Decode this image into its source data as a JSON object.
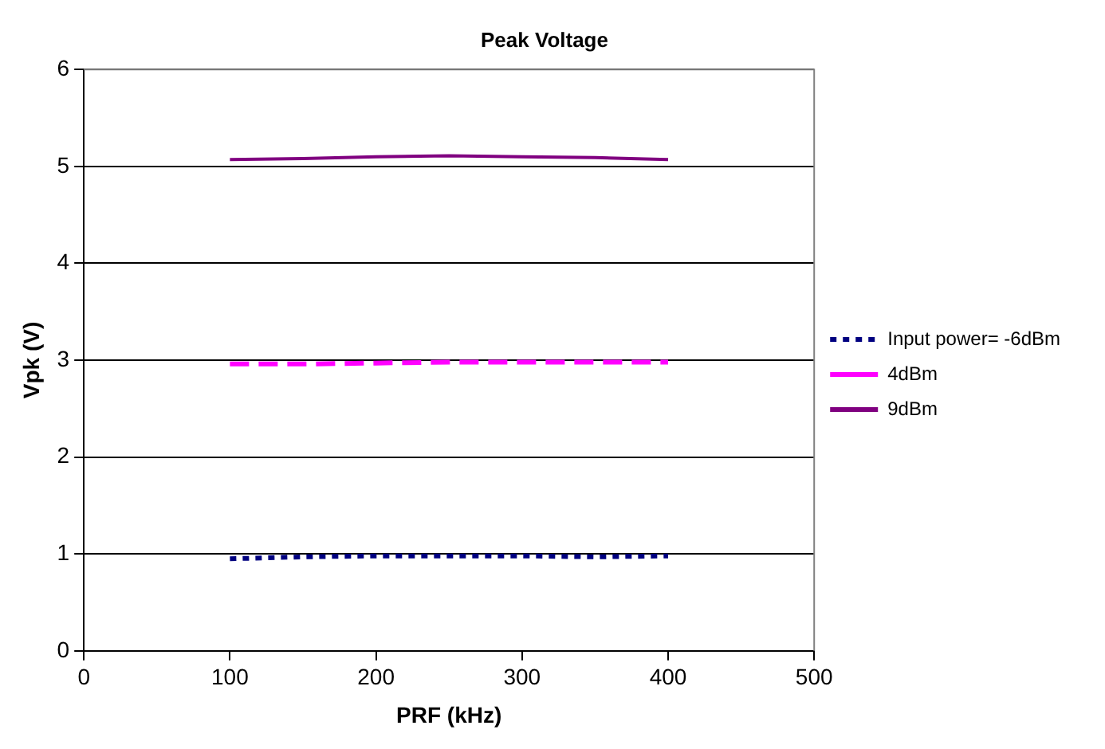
{
  "chart_data": {
    "type": "line",
    "title": "Peak Voltage",
    "xlabel": "PRF (kHz)",
    "ylabel": "Vpk (V)",
    "x": [
      100,
      150,
      200,
      250,
      300,
      350,
      400
    ],
    "series": [
      {
        "name": "Input power= -6dBm",
        "color": "#000080",
        "line_style": "dotted",
        "values": [
          0.95,
          0.97,
          0.98,
          0.98,
          0.98,
          0.97,
          0.98
        ]
      },
      {
        "name": "4dBm",
        "color": "#ff00ff",
        "line_style": "dashed",
        "values": [
          2.96,
          2.96,
          2.97,
          2.98,
          2.98,
          2.98,
          2.98
        ]
      },
      {
        "name": "9dBm",
        "color": "#800080",
        "line_style": "solid",
        "values": [
          5.07,
          5.08,
          5.1,
          5.11,
          5.1,
          5.09,
          5.07
        ]
      }
    ],
    "xlim": [
      0,
      500
    ],
    "xticks": [
      0,
      100,
      200,
      300,
      400,
      500
    ],
    "ylim": [
      0,
      6
    ],
    "yticks": [
      0,
      1,
      2,
      3,
      4,
      5,
      6
    ],
    "grid": "y",
    "legend": "right",
    "marker": "none"
  }
}
